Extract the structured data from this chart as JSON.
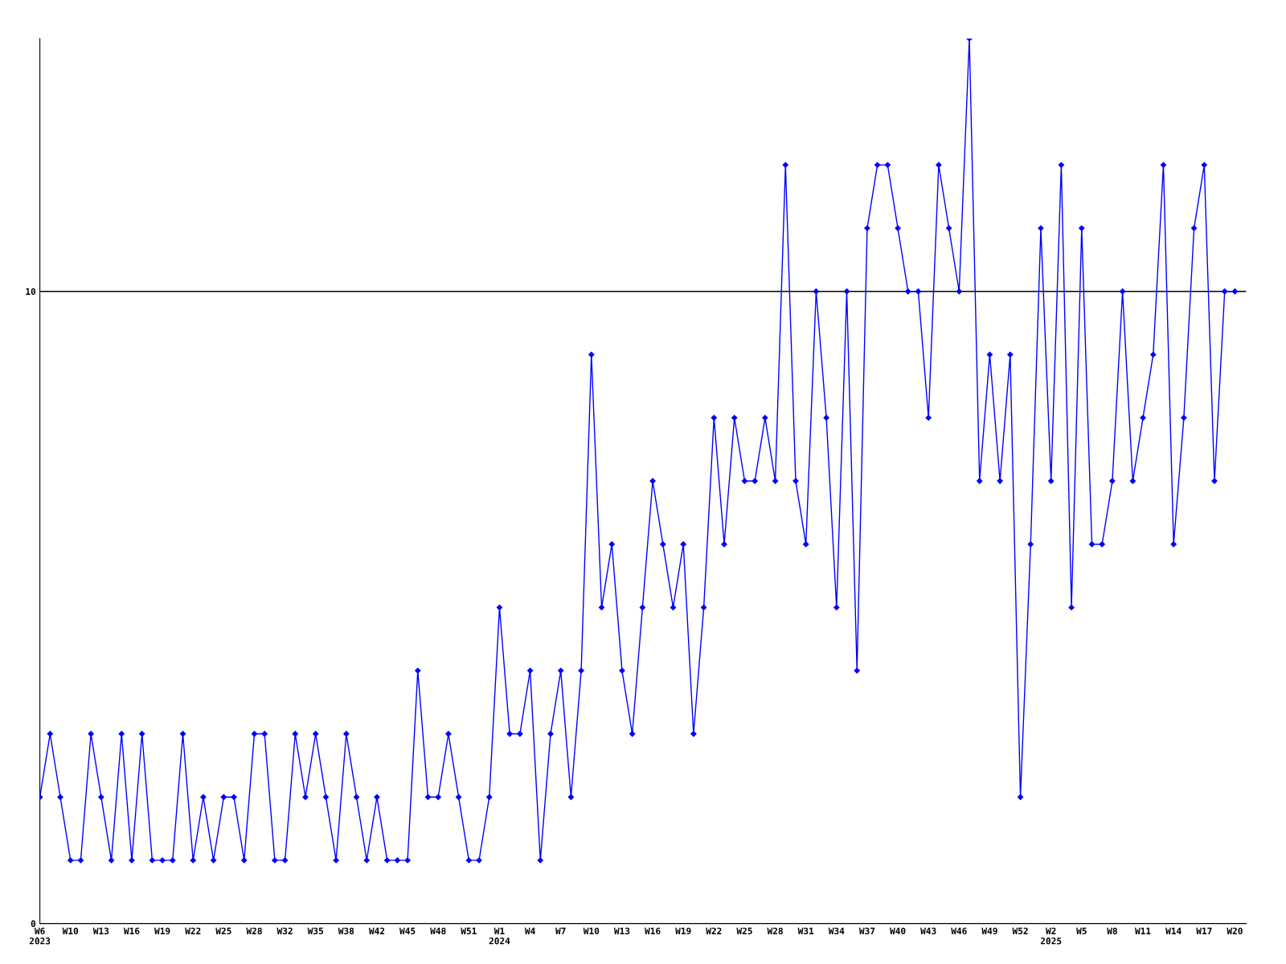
{
  "chart_data": {
    "type": "line",
    "categories": [
      "W6\n2023",
      null,
      null,
      "W10",
      null,
      null,
      "W13",
      null,
      null,
      "W16",
      null,
      null,
      "W19",
      null,
      null,
      "W22",
      null,
      null,
      "W25",
      null,
      null,
      "W28",
      null,
      null,
      "W32",
      null,
      null,
      "W35",
      null,
      null,
      "W38",
      null,
      null,
      "W42",
      null,
      null,
      "W45",
      null,
      null,
      "W48",
      null,
      null,
      "W51",
      null,
      null,
      "W1\n2024",
      null,
      null,
      "W4",
      null,
      null,
      "W7",
      null,
      null,
      "W10",
      null,
      null,
      "W13",
      null,
      null,
      "W16",
      null,
      null,
      "W19",
      null,
      null,
      "W22",
      null,
      null,
      "W25",
      null,
      null,
      "W28",
      null,
      null,
      "W31",
      null,
      null,
      "W34",
      null,
      null,
      "W37",
      null,
      null,
      "W40",
      null,
      null,
      "W43",
      null,
      null,
      "W46",
      null,
      null,
      "W49",
      null,
      null,
      "W52",
      null,
      null,
      "W2\n2025",
      null,
      null,
      "W5",
      null,
      null,
      "W8",
      null,
      null,
      "W11",
      null,
      null,
      "W14",
      null,
      null,
      "W17",
      null,
      null,
      "W20"
    ],
    "series": [
      {
        "color": "#0000ff",
        "values": [
          2,
          3,
          2,
          1,
          1,
          3,
          2,
          1,
          3,
          1,
          3,
          1,
          1,
          1,
          3,
          1,
          2,
          1,
          2,
          2,
          1,
          3,
          3,
          1,
          1,
          3,
          2,
          3,
          2,
          1,
          3,
          2,
          1,
          2,
          1,
          1,
          1,
          4,
          2,
          2,
          3,
          2,
          1,
          1,
          2,
          5,
          3,
          3,
          4,
          1,
          3,
          4,
          2,
          4,
          9,
          5,
          6,
          4,
          3,
          5,
          7,
          6,
          5,
          6,
          3,
          5,
          8,
          6,
          8,
          7,
          7,
          8,
          7,
          12,
          7,
          6,
          10,
          8,
          5,
          10,
          4,
          11,
          12,
          12,
          11,
          10,
          10,
          8,
          12,
          11,
          10,
          14,
          7,
          9,
          7,
          9,
          2,
          6,
          11,
          7,
          12,
          5,
          11,
          6,
          6,
          7,
          10,
          7,
          8,
          9,
          12,
          6,
          8,
          11,
          12,
          7,
          10,
          10
        ]
      }
    ],
    "ylim": [
      0,
      14
    ],
    "yticks": [
      0,
      10
    ],
    "grid": "y",
    "marker": "diamond",
    "line_style": "solid"
  }
}
